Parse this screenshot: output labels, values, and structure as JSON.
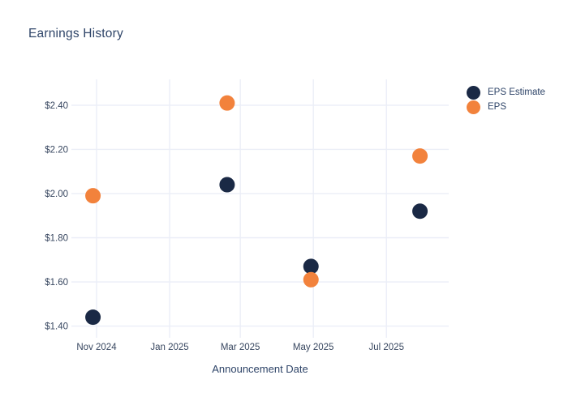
{
  "chart_data": {
    "type": "scatter",
    "title": "Earnings History",
    "xlabel": "Announcement Date",
    "ylabel": "",
    "grid": true,
    "legend_position": "top-right",
    "x_range": [
      "2024-10-11",
      "2025-08-22"
    ],
    "y_range": [
      1.347,
      2.517
    ],
    "x_ticks": [
      {
        "date": "2024-11-01",
        "label": "Nov 2024"
      },
      {
        "date": "2025-01-01",
        "label": "Jan 2025"
      },
      {
        "date": "2025-03-01",
        "label": "Mar 2025"
      },
      {
        "date": "2025-05-01",
        "label": "May 2025"
      },
      {
        "date": "2025-07-01",
        "label": "Jul 2025"
      }
    ],
    "y_ticks": [
      {
        "value": 1.4,
        "label": "$1.40"
      },
      {
        "value": 1.6,
        "label": "$1.60"
      },
      {
        "value": 1.8,
        "label": "$1.80"
      },
      {
        "value": 2.0,
        "label": "$2.00"
      },
      {
        "value": 2.2,
        "label": "$2.20"
      },
      {
        "value": 2.4,
        "label": "$2.40"
      }
    ],
    "series": [
      {
        "name": "EPS Estimate",
        "color": "#1a2945",
        "points": [
          {
            "x": "2024-10-29",
            "y": 1.44
          },
          {
            "x": "2025-02-18",
            "y": 2.04
          },
          {
            "x": "2025-04-29",
            "y": 1.67
          },
          {
            "x": "2025-07-29",
            "y": 1.92
          }
        ]
      },
      {
        "name": "EPS",
        "color": "#f2823c",
        "points": [
          {
            "x": "2024-10-29",
            "y": 1.99
          },
          {
            "x": "2025-02-18",
            "y": 2.41
          },
          {
            "x": "2025-04-29",
            "y": 1.61
          },
          {
            "x": "2025-07-29",
            "y": 2.17
          }
        ]
      }
    ]
  },
  "colors": {
    "background": "#ffffff",
    "grid": "#ebeef7",
    "tick_text": "#384760",
    "heading_text": "#2e4468",
    "eps_estimate": "#1a2945",
    "eps": "#f2823c"
  }
}
